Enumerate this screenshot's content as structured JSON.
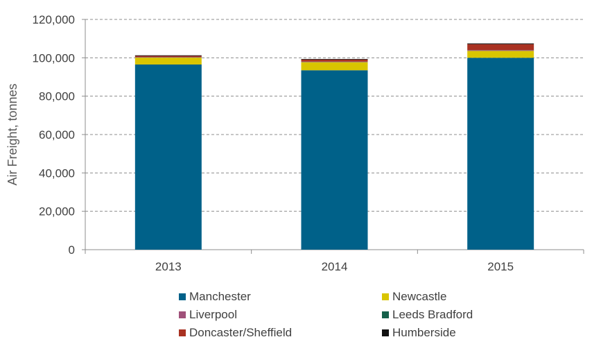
{
  "chart_data": {
    "type": "bar",
    "stacked": true,
    "ylabel": "Air Freight, tonnes",
    "xlabel": "",
    "ylim": [
      0,
      120000
    ],
    "yticks": [
      0,
      20000,
      40000,
      60000,
      80000,
      100000,
      120000
    ],
    "ytick_labels": [
      "0",
      "20,000",
      "40,000",
      "60,000",
      "80,000",
      "100,000",
      "120,000"
    ],
    "grid": true,
    "legend_position": "bottom",
    "categories": [
      "2013",
      "2014",
      "2015"
    ],
    "series": [
      {
        "name": "Manchester",
        "color": "#006189",
        "values": [
          96500,
          93500,
          100000
        ]
      },
      {
        "name": "Newcastle",
        "color": "#d9c500",
        "values": [
          3600,
          4200,
          3600
        ]
      },
      {
        "name": "Liverpool",
        "color": "#a0517a",
        "values": [
          200,
          200,
          300
        ]
      },
      {
        "name": "Leeds Bradford",
        "color": "#15604a",
        "values": [
          100,
          100,
          100
        ]
      },
      {
        "name": "Doncaster/Sheffield",
        "color": "#a93222",
        "values": [
          600,
          1100,
          3100
        ]
      },
      {
        "name": "Humberside",
        "color": "#111111",
        "values": [
          300,
          300,
          400
        ]
      }
    ]
  }
}
